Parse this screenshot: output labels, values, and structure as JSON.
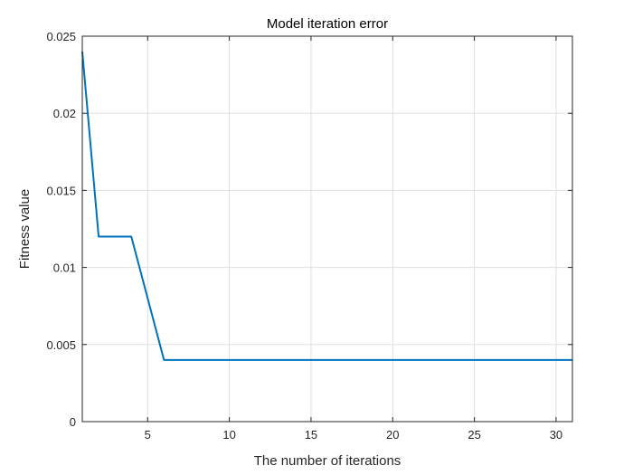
{
  "chart_data": {
    "type": "line",
    "title": "Model iteration error",
    "xlabel": "The number of iterations",
    "ylabel": "Fitness value",
    "xlim": [
      1,
      31
    ],
    "ylim": [
      0,
      0.025
    ],
    "xticks": [
      5,
      10,
      15,
      20,
      25,
      30
    ],
    "xtick_labels": [
      "5",
      "10",
      "15",
      "20",
      "25",
      "30"
    ],
    "yticks": [
      0,
      0.005,
      0.01,
      0.015,
      0.02,
      0.025
    ],
    "ytick_labels": [
      "0",
      "0.005",
      "0.01",
      "0.015",
      "0.02",
      "0.025"
    ],
    "grid": true,
    "series": [
      {
        "color": "#0072bd",
        "x": [
          1,
          2,
          3,
          4,
          5,
          6,
          7,
          8,
          9,
          10,
          11,
          12,
          13,
          14,
          15,
          16,
          17,
          18,
          19,
          20,
          21,
          22,
          23,
          24,
          25,
          26,
          27,
          28,
          29,
          30,
          31
        ],
        "y": [
          0.024,
          0.012,
          0.012,
          0.012,
          0.008,
          0.004,
          0.004,
          0.004,
          0.004,
          0.004,
          0.004,
          0.004,
          0.004,
          0.004,
          0.004,
          0.004,
          0.004,
          0.004,
          0.004,
          0.004,
          0.004,
          0.004,
          0.004,
          0.004,
          0.004,
          0.004,
          0.004,
          0.004,
          0.004,
          0.004,
          0.004
        ]
      }
    ]
  }
}
